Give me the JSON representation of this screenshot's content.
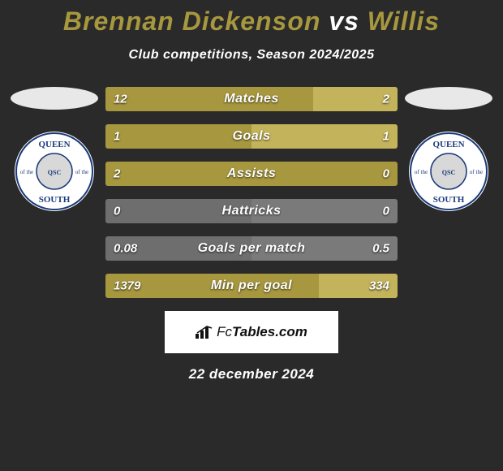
{
  "title_parts": {
    "p1": "Brennan Dickenson",
    "vs": " vs ",
    "p2": "Willis"
  },
  "colors": {
    "p1": "#a7973e",
    "p2": "#a7973e",
    "neutral": "#7a7a7a",
    "neutral_dark": "#6e6e6e",
    "bg": "#2a2a2a",
    "avatar": "#e8e8e8"
  },
  "subtitle": "Club competitions, Season 2024/2025",
  "crest": {
    "top": "QUEEN",
    "left": "of the",
    "right": "of the",
    "bottom": "SOUTH",
    "ring": "#ffffff",
    "inner_ring": "#1a3a7a",
    "text": "#1a3a7a",
    "center": "#d8d8d8"
  },
  "stats": [
    {
      "label": "Matches",
      "l": "12",
      "r": "2",
      "lw": 71,
      "nw": 0,
      "rw": 29,
      "scheme": "both"
    },
    {
      "label": "Goals",
      "l": "1",
      "r": "1",
      "lw": 50,
      "nw": 0,
      "rw": 50,
      "scheme": "both"
    },
    {
      "label": "Assists",
      "l": "2",
      "r": "0",
      "lw": 100,
      "nw": 0,
      "rw": 0,
      "scheme": "left"
    },
    {
      "label": "Hattricks",
      "l": "0",
      "r": "0",
      "lw": 0,
      "nw": 100,
      "rw": 0,
      "scheme": "none"
    },
    {
      "label": "Goals per match",
      "l": "0.08",
      "r": "0.5",
      "lw": 0,
      "nw": 100,
      "rw": 0,
      "scheme": "none"
    },
    {
      "label": "Min per goal",
      "l": "1379",
      "r": "334",
      "lw": 73,
      "nw": 0,
      "rw": 27,
      "scheme": "both"
    }
  ],
  "brand_prefix": "Fc",
  "brand_suffix": "Tables.com",
  "date": "22 december 2024"
}
